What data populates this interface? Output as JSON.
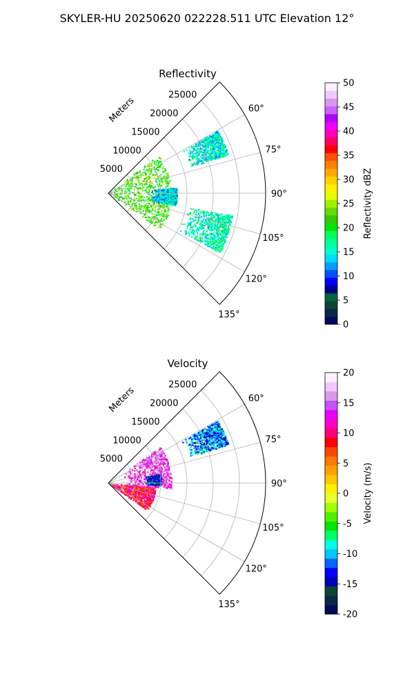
{
  "figure": {
    "title": "SKYLER-HU  20250620  022228.511 UTC Elevation 12°"
  },
  "chart_data": [
    {
      "type": "heatmap",
      "title": "Reflectivity",
      "projection": "polar sector",
      "radial_label": "Meters",
      "theta_range_deg": [
        45,
        135
      ],
      "r_range": [
        0,
        30000
      ],
      "radial_ticks": [
        "5000",
        "10000",
        "15000",
        "20000",
        "25000"
      ],
      "theta_ticks": [
        "60°",
        "75°",
        "90°",
        "105°",
        "120°",
        "135°"
      ],
      "grid": true,
      "colorbar": {
        "label": "Reflectivity dBZ",
        "range": [
          0,
          50
        ],
        "ticks": [
          "0",
          "5",
          "10",
          "15",
          "20",
          "25",
          "30",
          "35",
          "40",
          "45",
          "50"
        ]
      },
      "echo_regions": [
        {
          "theta": [
            52,
            125
          ],
          "r": [
            0,
            12000
          ],
          "level": 22
        },
        {
          "theta": [
            85,
            100
          ],
          "r": [
            8000,
            13000
          ],
          "level": 14
        },
        {
          "theta": [
            60,
            72
          ],
          "r": [
            16000,
            24000
          ],
          "level": 15
        },
        {
          "theta": [
            100,
            118
          ],
          "r": [
            15000,
            24000
          ],
          "level": 16
        }
      ]
    },
    {
      "type": "heatmap",
      "title": "Velocity",
      "projection": "polar sector",
      "radial_label": "Meters",
      "theta_range_deg": [
        45,
        135
      ],
      "r_range": [
        0,
        30000
      ],
      "radial_ticks": [
        "5000",
        "10000",
        "15000",
        "20000",
        "25000"
      ],
      "theta_ticks": [
        "60°",
        "75°",
        "90°",
        "105°",
        "120°",
        "135°"
      ],
      "grid": true,
      "colorbar": {
        "label": "Velocity (m/s)",
        "range": [
          -20,
          20
        ],
        "ticks": [
          "-20",
          "-15",
          "-10",
          "-5",
          "0",
          "5",
          "10",
          "15",
          "20"
        ]
      },
      "echo_regions": [
        {
          "theta": [
            95,
            125
          ],
          "r": [
            0,
            9000
          ],
          "level": 9
        },
        {
          "theta": [
            55,
            95
          ],
          "r": [
            3000,
            12000
          ],
          "level": 14
        },
        {
          "theta": [
            80,
            92
          ],
          "r": [
            7000,
            10000
          ],
          "level": -14
        },
        {
          "theta": [
            60,
            72
          ],
          "r": [
            16000,
            24000
          ],
          "level": -11
        }
      ]
    }
  ],
  "colors": {
    "grid": "#b0b0b0",
    "axes": "#000000",
    "reflectivity_scale": [
      "#000a5a",
      "#0a2846",
      "#0a4632",
      "#00643c",
      "#00008c",
      "#0000ff",
      "#0050ff",
      "#00a0ff",
      "#00dcff",
      "#00ffc8",
      "#00ff96",
      "#00ff5a",
      "#00e600",
      "#32c800",
      "#64dc00",
      "#a0f000",
      "#e6ff00",
      "#fff000",
      "#ffd000",
      "#ffaa00",
      "#ff8000",
      "#ff5000",
      "#ff0000",
      "#ff0064",
      "#ff00b4",
      "#f000ff",
      "#b400ff",
      "#c864ff",
      "#dc96f0",
      "#f0c8ff",
      "#fff0ff"
    ],
    "velocity_scale": [
      "#000a5a",
      "#0a2846",
      "#0a4632",
      "#0000b4",
      "#0000ff",
      "#0064ff",
      "#00c8ff",
      "#00ffe6",
      "#00ff64",
      "#00e600",
      "#50f000",
      "#a0ff00",
      "#e6ff32",
      "#fff000",
      "#ffc800",
      "#ffa000",
      "#ff7800",
      "#ff4600",
      "#ff0000",
      "#ff0078",
      "#ff00c8",
      "#e600ff",
      "#c850ff",
      "#dc96f0",
      "#f0c8ff",
      "#fff0ff"
    ]
  }
}
